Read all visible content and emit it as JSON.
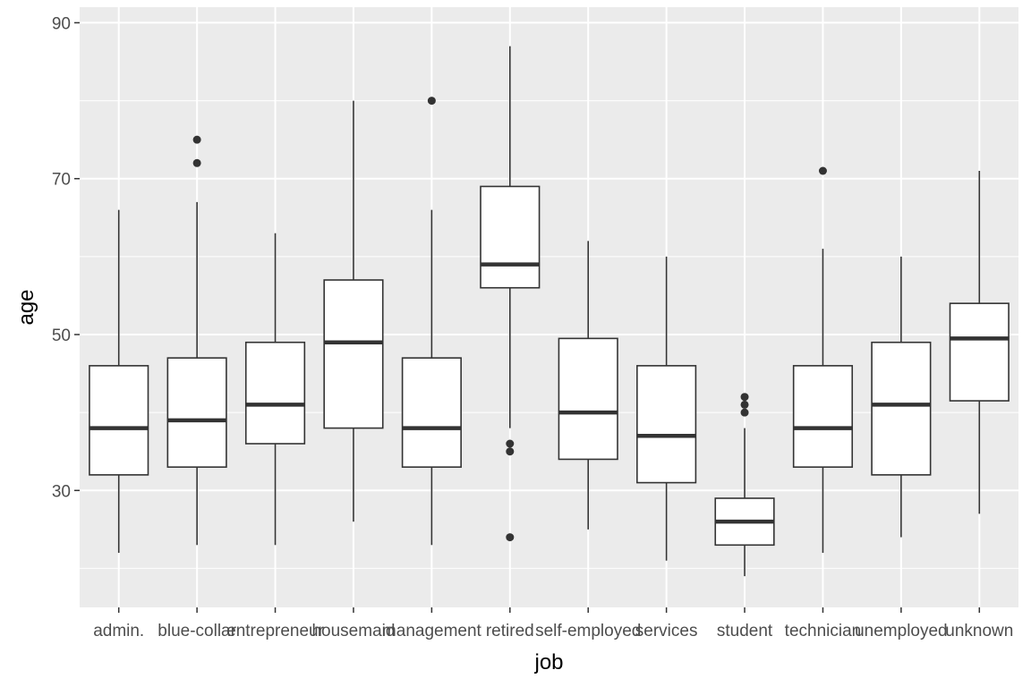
{
  "chart_data": {
    "type": "boxplot",
    "xlabel": "job",
    "ylabel": "age",
    "ylim": [
      15,
      92
    ],
    "yticks": [
      30,
      50,
      70,
      90
    ],
    "grid": true,
    "colors": {
      "panel": "#ebebeb",
      "grid": "#ffffff",
      "box_fill": "#ffffff",
      "box_line": "#333333",
      "tick_text": "#4d4d4d"
    },
    "categories": [
      "admin.",
      "blue-collar",
      "entrepreneur",
      "housemaid",
      "management",
      "retired",
      "self-employed",
      "services",
      "student",
      "technician",
      "unemployed",
      "unknown"
    ],
    "boxes": [
      {
        "label": "admin.",
        "min": 22,
        "q1": 32,
        "median": 38,
        "q3": 46,
        "max": 66,
        "outliers": []
      },
      {
        "label": "blue-collar",
        "min": 23,
        "q1": 33,
        "median": 39,
        "q3": 47,
        "max": 67,
        "outliers": [
          72,
          75
        ]
      },
      {
        "label": "entrepreneur",
        "min": 23,
        "q1": 36,
        "median": 41,
        "q3": 49,
        "max": 63,
        "outliers": []
      },
      {
        "label": "housemaid",
        "min": 26,
        "q1": 38,
        "median": 49,
        "q3": 57,
        "max": 80,
        "outliers": []
      },
      {
        "label": "management",
        "min": 23,
        "q1": 33,
        "median": 38,
        "q3": 47,
        "max": 66,
        "outliers": [
          80
        ]
      },
      {
        "label": "retired",
        "min": 38,
        "q1": 56,
        "median": 59,
        "q3": 69,
        "max": 87,
        "outliers": [
          24,
          35,
          36
        ]
      },
      {
        "label": "self-employed",
        "min": 25,
        "q1": 34,
        "median": 40,
        "q3": 49.5,
        "max": 62,
        "outliers": []
      },
      {
        "label": "services",
        "min": 21,
        "q1": 31,
        "median": 37,
        "q3": 46,
        "max": 60,
        "outliers": []
      },
      {
        "label": "student",
        "min": 19,
        "q1": 23,
        "median": 26,
        "q3": 29,
        "max": 38,
        "outliers": [
          40,
          41,
          42
        ]
      },
      {
        "label": "technician",
        "min": 22,
        "q1": 33,
        "median": 38,
        "q3": 46,
        "max": 61,
        "outliers": [
          71
        ]
      },
      {
        "label": "unemployed",
        "min": 24,
        "q1": 32,
        "median": 41,
        "q3": 49,
        "max": 60,
        "outliers": []
      },
      {
        "label": "unknown",
        "min": 27,
        "q1": 41.5,
        "median": 49.5,
        "q3": 54,
        "max": 71,
        "outliers": []
      }
    ]
  }
}
